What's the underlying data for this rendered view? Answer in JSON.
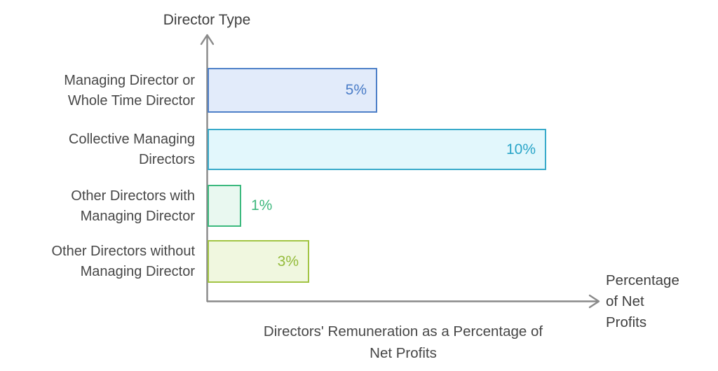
{
  "chart_data": {
    "type": "bar",
    "orientation": "horizontal",
    "title": "Directors' Remuneration as a Percentage of Net Profits",
    "x_axis_label": "Percentage of Net Profits",
    "y_axis_label": "Director Type",
    "categories": [
      "Managing Director or Whole Time Director",
      "Collective Managing Directors",
      "Other Directors with Managing Director",
      "Other Directors without Managing Director"
    ],
    "values": [
      5,
      10,
      1,
      3
    ],
    "value_labels": [
      "5%",
      "10%",
      "1%",
      "3%"
    ],
    "xlim": [
      0,
      11.6
    ],
    "grid": false,
    "legend": false
  },
  "y_axis": {
    "title": "Director Type"
  },
  "x_axis": {
    "title_line1": "Percentage",
    "title_line2": "of Net",
    "title_line3": "Profits"
  },
  "title": {
    "line1": "Directors' Remuneration as a Percentage of",
    "line2": "Net Profits"
  },
  "bars": [
    {
      "label_line1": "Managing Director or",
      "label_line2": "Whole Time Director",
      "value": 5,
      "value_label": "5%",
      "placement": "inside",
      "fill": "#e2ebfa",
      "border": "#4e80c8",
      "label_color": "#4a7cc7"
    },
    {
      "label_line1": "Collective Managing",
      "label_line2": "Directors",
      "value": 10,
      "value_label": "10%",
      "placement": "inside",
      "fill": "#e2f7fc",
      "border": "#38aaca",
      "label_color": "#2aa5c8"
    },
    {
      "label_line1": "Other Directors with",
      "label_line2": "Managing Director",
      "value": 1,
      "value_label": "1%",
      "placement": "outside",
      "fill": "#e9f8f0",
      "border": "#3cb97e",
      "label_color": "#3db87d"
    },
    {
      "label_line1": "Other Directors without",
      "label_line2": "Managing Director",
      "value": 3,
      "value_label": "3%",
      "placement": "inside",
      "fill": "#f0f7df",
      "border": "#a2c444",
      "label_color": "#94bb3a"
    }
  ],
  "colors": {
    "axis": "#8a8a8a",
    "text": "#474747"
  }
}
